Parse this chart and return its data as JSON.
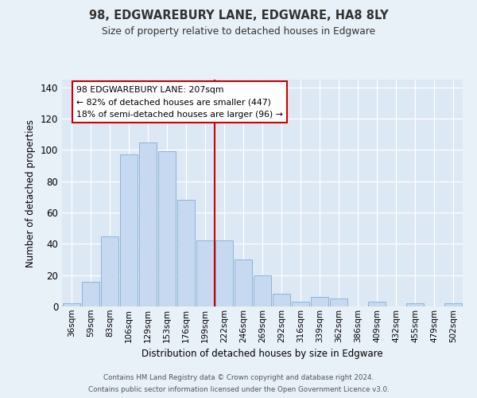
{
  "title": "98, EDGWAREBURY LANE, EDGWARE, HA8 8LY",
  "subtitle": "Size of property relative to detached houses in Edgware",
  "xlabel": "Distribution of detached houses by size in Edgware",
  "ylabel": "Number of detached properties",
  "bar_labels": [
    "36sqm",
    "59sqm",
    "83sqm",
    "106sqm",
    "129sqm",
    "153sqm",
    "176sqm",
    "199sqm",
    "222sqm",
    "246sqm",
    "269sqm",
    "292sqm",
    "316sqm",
    "339sqm",
    "362sqm",
    "386sqm",
    "409sqm",
    "432sqm",
    "455sqm",
    "479sqm",
    "502sqm"
  ],
  "bar_values": [
    2,
    16,
    45,
    97,
    105,
    99,
    68,
    42,
    42,
    30,
    20,
    8,
    3,
    6,
    5,
    0,
    3,
    0,
    2,
    0,
    2
  ],
  "bar_color": "#c6d9f0",
  "bar_edge_color": "#8db4d8",
  "background_color": "#e8f0f8",
  "plot_bg_color": "#dce8f4",
  "ylim": [
    0,
    145
  ],
  "yticks": [
    0,
    20,
    40,
    60,
    80,
    100,
    120,
    140
  ],
  "vline_x": 7.5,
  "vline_color": "#cc0000",
  "annotation_box_text": "98 EDGWAREBURY LANE: 207sqm\n← 82% of detached houses are smaller (447)\n18% of semi-detached houses are larger (96) →",
  "annotation_box_color": "#ffffff",
  "annotation_box_edge_color": "#cc0000",
  "footer_line1": "Contains HM Land Registry data © Crown copyright and database right 2024.",
  "footer_line2": "Contains public sector information licensed under the Open Government Licence v3.0."
}
